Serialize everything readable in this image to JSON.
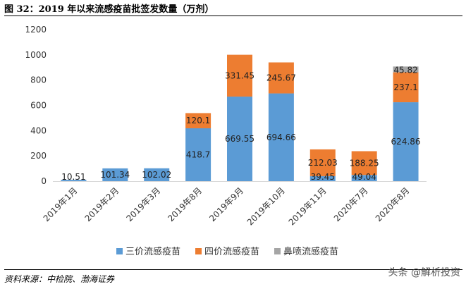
{
  "title": "图 32：2019 年以来流感疫苗批签发数量（万剂）",
  "source": "资料来源：中检院、渤海证券",
  "watermark": "头条 @解析投资",
  "colors": {
    "trivalent": "#5B9BD5",
    "quadrivalent": "#ED7D31",
    "nasal": "#A5A5A5",
    "axis": "#D9D9D9"
  },
  "chart_data": {
    "type": "bar",
    "stacked": true,
    "categories": [
      "2019年1月",
      "2019年2月",
      "2019年3月",
      "2019年8月",
      "2019年9月",
      "2019年10月",
      "2019年11月",
      "2020年7月",
      "2020年8月"
    ],
    "series": [
      {
        "name": "三价流感疫苗",
        "values": [
          10.51,
          101.34,
          102.02,
          418.7,
          669.55,
          694.66,
          39.45,
          49.04,
          624.86
        ]
      },
      {
        "name": "四价流感疫苗",
        "values": [
          0,
          0,
          0,
          120.1,
          331.45,
          245.67,
          212.03,
          188.25,
          237.1
        ]
      },
      {
        "name": "鼻喷流感疫苗",
        "values": [
          0,
          0,
          0,
          0,
          0,
          0,
          0,
          0,
          45.82
        ]
      }
    ],
    "data_labels": [
      [
        "10.51",
        "101.34",
        "102.02",
        "418.7",
        "669.55",
        "694.66",
        "39.45",
        "49.04",
        "624.86"
      ],
      [
        "",
        "",
        "",
        "120.1",
        "331.45",
        "245.67",
        "212.03",
        "188.25",
        "237.1"
      ],
      [
        "",
        "",
        "",
        "",
        "",
        "",
        "",
        "",
        "45.82"
      ]
    ],
    "y_ticks": [
      "0",
      "200",
      "400",
      "600",
      "800",
      "1000",
      "1200"
    ],
    "ylim": [
      0,
      1200
    ],
    "legend_position": "bottom",
    "grid": false
  }
}
